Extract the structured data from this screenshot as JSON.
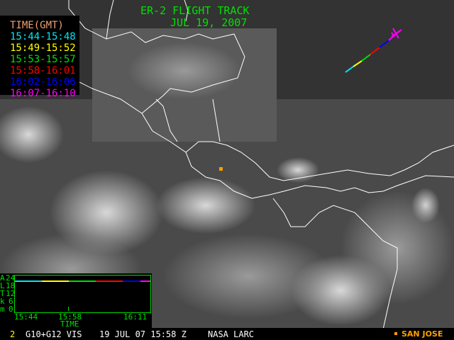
{
  "title": "ER-2 FLIGHT TRACK",
  "subtitle": "JUL 19, 2007",
  "legend": {
    "header": "TIME(GMT)",
    "items": [
      {
        "label": "15:44-15:48",
        "color": "#00e8f0"
      },
      {
        "label": "15:49-15:52",
        "color": "#ffff00"
      },
      {
        "label": "15:53-15:57",
        "color": "#00e000"
      },
      {
        "label": "15:58-16:01",
        "color": "#ff0000"
      },
      {
        "label": "16:02-16:06",
        "color": "#0000ff"
      },
      {
        "label": "16:07-16:10",
        "color": "#ff00ff"
      }
    ]
  },
  "altitude_plot": {
    "y_axis_letters": [
      "A",
      "L",
      "T",
      "k",
      "m"
    ],
    "y_ticks": [
      "24",
      "18",
      "12",
      "6",
      "0"
    ],
    "x_ticks": [
      "15:44",
      "15:58",
      "16:11"
    ],
    "x_label": "TIME",
    "altitude_km": 20
  },
  "footer": {
    "frame": "2",
    "sensor": "G10+G12 VIS",
    "datetime": "19 JUL 07 15:58 Z",
    "source": "NASA LARC",
    "marker_label": "SAN JOSE",
    "marker_color": "#ffa000"
  }
}
